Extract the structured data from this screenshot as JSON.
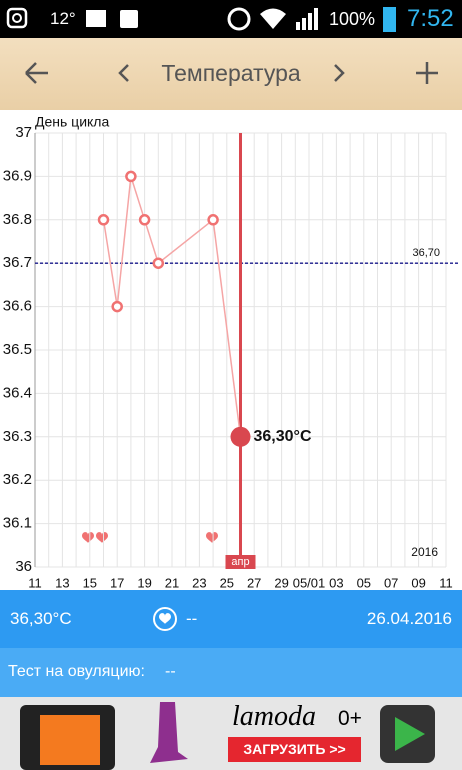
{
  "status_bar": {
    "temperature": "12°",
    "battery": "100%",
    "time": "7:52"
  },
  "header": {
    "title": "Температура"
  },
  "chart_data": {
    "type": "line",
    "title": "День цикла",
    "categories": [
      "11",
      null,
      "13",
      null,
      "15",
      null,
      "17",
      null,
      "19",
      null,
      "21",
      null,
      "23",
      null,
      "25",
      null,
      "27",
      null,
      "29",
      null,
      "05/01",
      null,
      "03",
      null,
      "05",
      null,
      "07",
      null,
      "09",
      null,
      "11"
    ],
    "series": [
      {
        "color": "#f07272",
        "values": [
          null,
          null,
          null,
          null,
          null,
          36.8,
          36.6,
          36.9,
          36.8,
          36.7,
          null,
          null,
          null,
          36.8,
          null,
          36.3,
          null,
          null,
          null,
          null,
          null,
          null,
          null,
          null,
          null,
          null,
          null,
          null,
          null,
          null,
          null
        ],
        "value_labels": [
          null,
          null,
          null,
          null,
          null,
          null,
          null,
          null,
          null,
          null,
          null,
          null,
          null,
          null,
          null,
          "36,30°C",
          null,
          null,
          null,
          null,
          null,
          null,
          null,
          null,
          null,
          null,
          null,
          null,
          null,
          null,
          null
        ]
      }
    ],
    "ylim": [
      36,
      37
    ],
    "yticks": [
      36,
      36.1,
      36.2,
      36.3,
      36.4,
      36.5,
      36.6,
      36.7,
      36.8,
      36.9,
      37
    ],
    "grid": true,
    "reference_line": {
      "value": 36.7,
      "label": "36,70",
      "color": "#1a1a8c"
    },
    "month_label": "апр",
    "year_label": "2016"
  },
  "summary": {
    "temperature": "36,30°C",
    "note": "--",
    "date": "26.04.2016"
  },
  "ovulation": {
    "label": "Тест на овуляцию:",
    "value": "--"
  },
  "ad": {
    "brand": "lamoda",
    "age": "0+",
    "button": "ЗАГРУЗИТЬ >>"
  }
}
